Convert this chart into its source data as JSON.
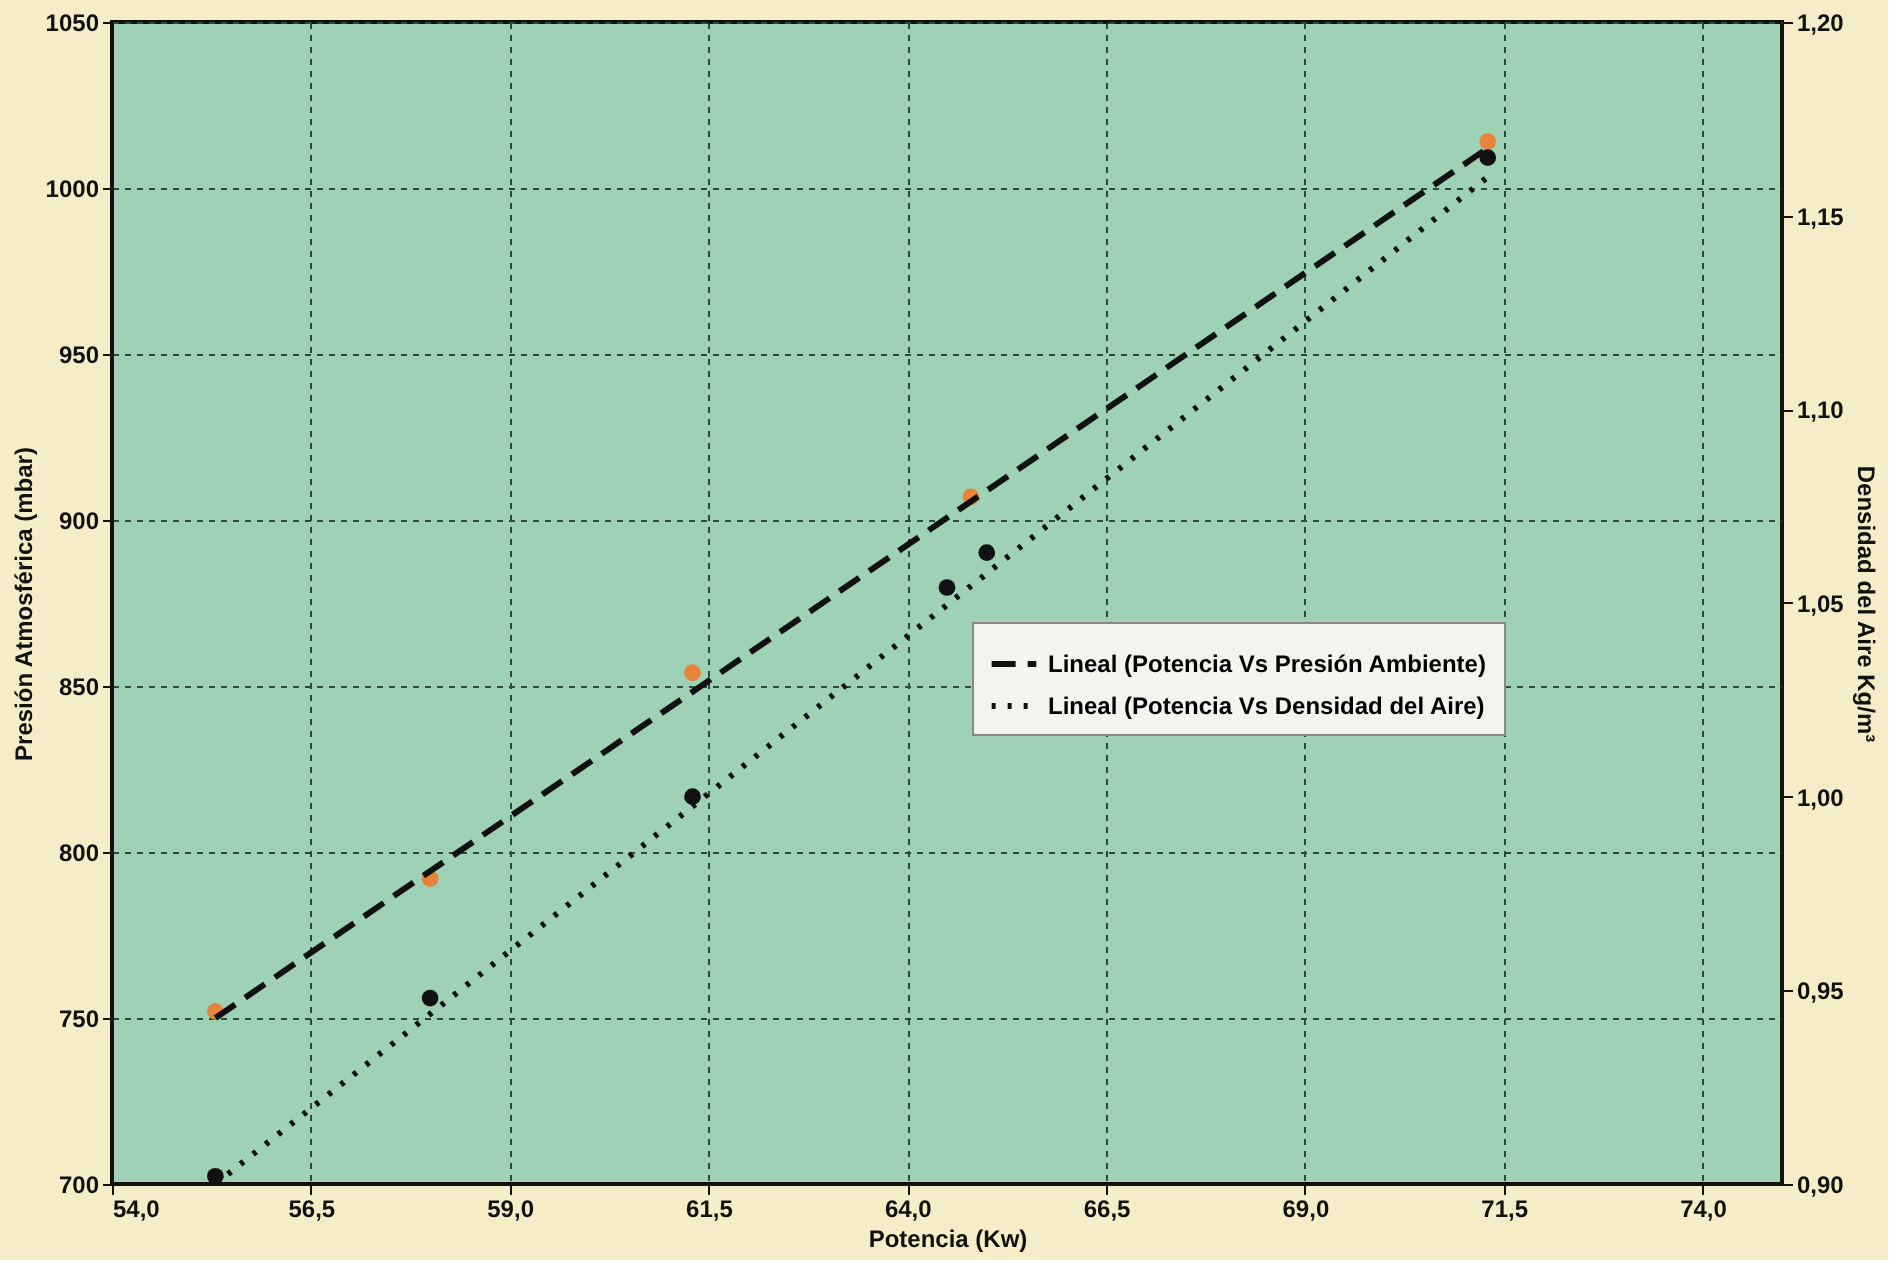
{
  "chart_data": {
    "type": "scatter",
    "xlabel": "Potencia (Kw)",
    "ylabel": "Presión Atmosférica (mbar)",
    "y2label": "Densidad del Aire Kg/m³",
    "xlim": [
      54,
      75
    ],
    "xticks": [
      {
        "value": 54,
        "label": "54,0"
      },
      {
        "value": 56.5,
        "label": "56,5"
      },
      {
        "value": 59,
        "label": "59,0"
      },
      {
        "value": 61.5,
        "label": "61,5"
      },
      {
        "value": 64,
        "label": "64,0"
      },
      {
        "value": 66.5,
        "label": "66,5"
      },
      {
        "value": 69,
        "label": "69,0"
      },
      {
        "value": 71.5,
        "label": "71,5"
      },
      {
        "value": 74,
        "label": "74,0"
      }
    ],
    "ylim": [
      700,
      1050
    ],
    "yticks": [
      700,
      750,
      800,
      850,
      900,
      950,
      1000,
      1050
    ],
    "y2lim": [
      0.9,
      1.2
    ],
    "y2ticks": [
      {
        "value": 0.9,
        "label": "0,90"
      },
      {
        "value": 0.95,
        "label": "0,95"
      },
      {
        "value": 1.0,
        "label": "1,00"
      },
      {
        "value": 1.05,
        "label": "1,05"
      },
      {
        "value": 1.1,
        "label": "1,10"
      },
      {
        "value": 1.15,
        "label": "1,15"
      },
      {
        "value": 1.2,
        "label": "1,20"
      }
    ],
    "grid": true,
    "legend": "right",
    "series": [
      {
        "marker": "circle",
        "color": "#e8833a",
        "x": [
          55.3,
          58.0,
          61.3,
          64.8,
          71.3
        ],
        "values": [
          752,
          792,
          854,
          907,
          1014
        ]
      },
      {
        "type": "line",
        "name": "Lineal (Potencia Vs Presión Ambiente)",
        "color": "#111111",
        "line_style": "dashed",
        "x": [
          55.3,
          71.3
        ],
        "values": [
          750,
          1012
        ]
      },
      {
        "marker": "circle",
        "axis": "y2",
        "color": "#111111",
        "x": [
          55.3,
          58.0,
          61.3,
          64.5,
          65.0,
          71.3
        ],
        "values": [
          0.902,
          0.948,
          1.0,
          1.054,
          1.063,
          1.165
        ]
      },
      {
        "type": "line",
        "axis": "y2",
        "name": "Lineal (Potencia Vs Densidad del Aire)",
        "color": "#111111",
        "line_style": "dotted",
        "x": [
          55.3,
          71.3
        ],
        "values": [
          0.9,
          1.16
        ]
      }
    ]
  }
}
